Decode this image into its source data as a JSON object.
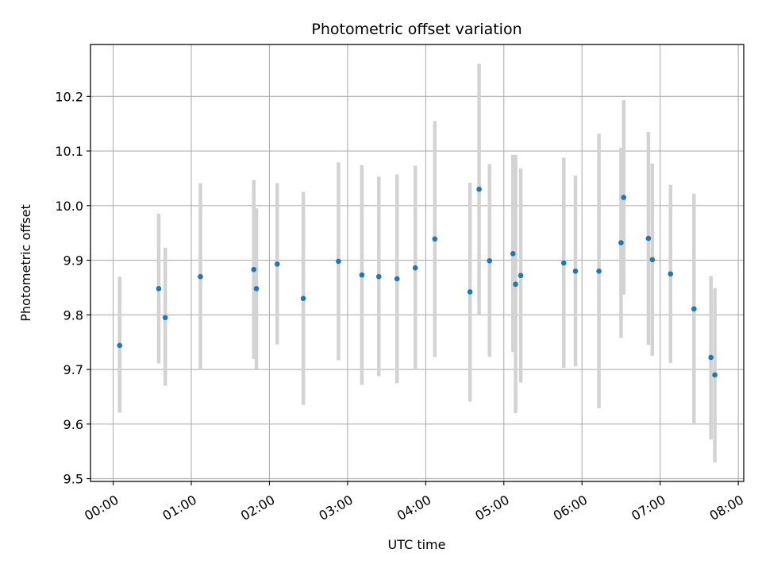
{
  "chart_data": {
    "type": "scatter",
    "title": "Photometric offset variation",
    "xlabel": "UTC time",
    "ylabel": "Photometric offset",
    "x_axis": {
      "unit": "hours",
      "range": [
        -0.29,
        8.07
      ],
      "ticks": [
        0,
        1,
        2,
        3,
        4,
        5,
        6,
        7,
        8
      ],
      "tick_labels": [
        "00:00",
        "01:00",
        "02:00",
        "03:00",
        "04:00",
        "05:00",
        "06:00",
        "07:00",
        "08:00"
      ]
    },
    "y_axis": {
      "range": [
        9.495,
        10.295
      ],
      "ticks": [
        9.5,
        9.6,
        9.7,
        9.8,
        9.9,
        10.0,
        10.1,
        10.2
      ],
      "tick_labels": [
        "9.5",
        "9.6",
        "9.7",
        "9.8",
        "9.9",
        "10.0",
        "10.1",
        "10.2"
      ]
    },
    "grid": true,
    "marker_color": "#1f77b4",
    "errorbar_color": "#d3d3d3",
    "points": [
      {
        "time": "00:05",
        "y": 9.744,
        "ylo": 9.621,
        "yhi": 9.87
      },
      {
        "time": "00:35",
        "y": 9.848,
        "ylo": 9.711,
        "yhi": 9.985
      },
      {
        "time": "00:40",
        "y": 9.795,
        "ylo": 9.67,
        "yhi": 9.923
      },
      {
        "time": "01:07",
        "y": 9.87,
        "ylo": 9.699,
        "yhi": 10.041
      },
      {
        "time": "01:48",
        "y": 9.883,
        "ylo": 9.719,
        "yhi": 10.047
      },
      {
        "time": "01:50",
        "y": 9.848,
        "ylo": 9.701,
        "yhi": 9.995
      },
      {
        "time": "02:06",
        "y": 9.893,
        "ylo": 9.746,
        "yhi": 10.041
      },
      {
        "time": "02:26",
        "y": 9.83,
        "ylo": 9.635,
        "yhi": 10.025
      },
      {
        "time": "02:53",
        "y": 9.898,
        "ylo": 9.717,
        "yhi": 10.079
      },
      {
        "time": "03:11",
        "y": 9.873,
        "ylo": 9.672,
        "yhi": 10.074
      },
      {
        "time": "03:24",
        "y": 9.87,
        "ylo": 9.688,
        "yhi": 10.053
      },
      {
        "time": "03:38",
        "y": 9.866,
        "ylo": 9.675,
        "yhi": 10.057
      },
      {
        "time": "03:52",
        "y": 9.886,
        "ylo": 9.7,
        "yhi": 10.073
      },
      {
        "time": "04:07",
        "y": 9.939,
        "ylo": 9.723,
        "yhi": 10.155
      },
      {
        "time": "04:34",
        "y": 9.842,
        "ylo": 9.641,
        "yhi": 10.042
      },
      {
        "time": "04:41",
        "y": 10.03,
        "ylo": 9.8,
        "yhi": 10.26
      },
      {
        "time": "04:49",
        "y": 9.899,
        "ylo": 9.723,
        "yhi": 10.076
      },
      {
        "time": "05:07",
        "y": 9.912,
        "ylo": 9.732,
        "yhi": 10.093
      },
      {
        "time": "05:09",
        "y": 9.856,
        "ylo": 9.62,
        "yhi": 10.093
      },
      {
        "time": "05:13",
        "y": 9.872,
        "ylo": 9.676,
        "yhi": 10.068
      },
      {
        "time": "05:46",
        "y": 9.895,
        "ylo": 9.703,
        "yhi": 10.088
      },
      {
        "time": "05:55",
        "y": 9.88,
        "ylo": 9.706,
        "yhi": 10.055
      },
      {
        "time": "06:13",
        "y": 9.88,
        "ylo": 9.629,
        "yhi": 10.132
      },
      {
        "time": "06:30",
        "y": 9.932,
        "ylo": 9.758,
        "yhi": 10.106
      },
      {
        "time": "06:32",
        "y": 10.015,
        "ylo": 9.837,
        "yhi": 10.193
      },
      {
        "time": "06:51",
        "y": 9.94,
        "ylo": 9.745,
        "yhi": 10.135
      },
      {
        "time": "06:54",
        "y": 9.901,
        "ylo": 9.725,
        "yhi": 10.077
      },
      {
        "time": "07:08",
        "y": 9.875,
        "ylo": 9.712,
        "yhi": 10.038
      },
      {
        "time": "07:26",
        "y": 9.811,
        "ylo": 9.6,
        "yhi": 10.022
      },
      {
        "time": "07:39",
        "y": 9.722,
        "ylo": 9.572,
        "yhi": 9.871
      },
      {
        "time": "07:42",
        "y": 9.69,
        "ylo": 9.53,
        "yhi": 9.849
      }
    ]
  }
}
